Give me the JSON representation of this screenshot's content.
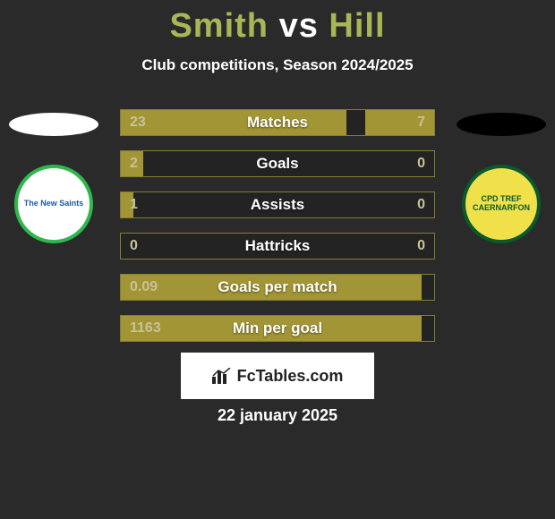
{
  "title": {
    "player1": "Smith",
    "vs": "vs",
    "player2": "Hill",
    "player1_color": "#a9b556",
    "vs_color": "#ffffff",
    "player2_color": "#a9b556"
  },
  "subtitle": "Club competitions, Season 2024/2025",
  "left_team": {
    "ellipse_color": "#ffffff",
    "crest_bg": "#ffffff",
    "crest_border": "#2eb84d",
    "crest_text": "The New Saints",
    "crest_text_color": "#1a5aa8"
  },
  "right_team": {
    "ellipse_color": "#000000",
    "crest_bg": "#f0e04a",
    "crest_border": "#0a5a2a",
    "crest_text": "CPD TREF CAERNARFON",
    "crest_text_color": "#0a5a2a"
  },
  "bars": {
    "fill_color": "#a29535",
    "border_color": "#877d2f",
    "empty_color": "rgba(0,0,0,0.15)",
    "value_color": "#c9c19a",
    "label_color": "#ffffff",
    "rows": [
      {
        "label": "Matches",
        "left": "23",
        "right": "7",
        "left_pct": 72,
        "right_pct": 22
      },
      {
        "label": "Goals",
        "left": "2",
        "right": "0",
        "left_pct": 7,
        "right_pct": 0
      },
      {
        "label": "Assists",
        "left": "1",
        "right": "0",
        "left_pct": 4,
        "right_pct": 0
      },
      {
        "label": "Hattricks",
        "left": "0",
        "right": "0",
        "left_pct": 0,
        "right_pct": 0
      },
      {
        "label": "Goals per match",
        "left": "0.09",
        "right": "",
        "left_pct": 96,
        "right_pct": 0
      },
      {
        "label": "Min per goal",
        "left": "1163",
        "right": "",
        "left_pct": 96,
        "right_pct": 0
      }
    ]
  },
  "logo": {
    "text": "FcTables.com",
    "bg": "#ffffff",
    "text_color": "#222222"
  },
  "date": "22 january 2025",
  "background_color": "#2a2a2a"
}
